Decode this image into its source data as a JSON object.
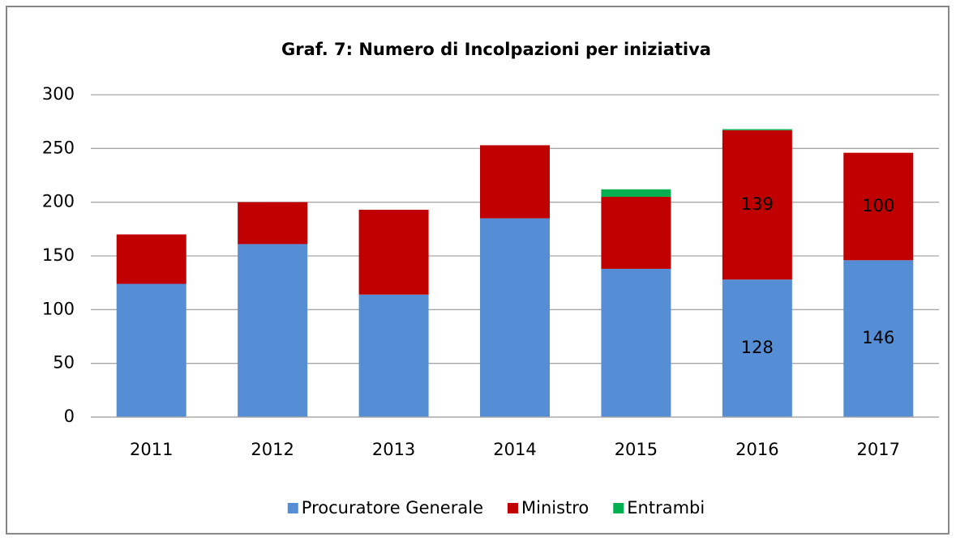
{
  "chart_data": {
    "type": "stacked_bar",
    "title": "Graf. 7: Numero di Incolpazioni per iniziativa",
    "categories": [
      "2011",
      "2012",
      "2013",
      "2014",
      "2015",
      "2016",
      "2017"
    ],
    "series": [
      {
        "name": "Procuratore Generale",
        "color": "#558ed5",
        "values": [
          124,
          161,
          114,
          185,
          138,
          128,
          146
        ],
        "value_labels": [
          null,
          null,
          null,
          null,
          null,
          "128",
          "146"
        ]
      },
      {
        "name": "Ministro",
        "color": "#c00000",
        "values": [
          46,
          39,
          79,
          68,
          67,
          139,
          100
        ],
        "value_labels": [
          null,
          null,
          null,
          null,
          null,
          "139",
          "100"
        ]
      },
      {
        "name": "Entrambi",
        "color": "#00b050",
        "values": [
          0,
          0,
          0,
          0,
          7,
          1,
          0
        ]
      }
    ],
    "ylim": [
      0,
      300
    ],
    "yticks": [
      0,
      50,
      100,
      150,
      200,
      250,
      300
    ],
    "grid": true,
    "legend": "bottom"
  }
}
